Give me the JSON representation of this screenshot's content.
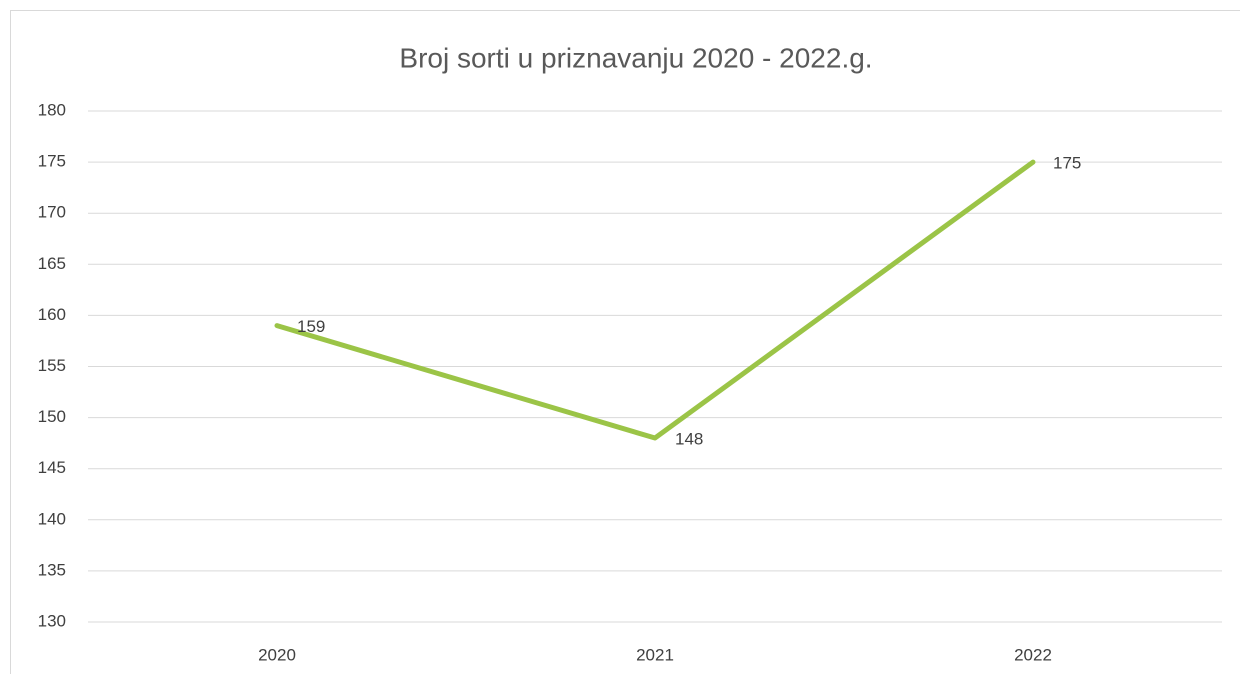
{
  "chart_data": {
    "type": "line",
    "title": "Broj sorti u priznavanju 2020 - 2022.g.",
    "categories": [
      "2020",
      "2021",
      "2022"
    ],
    "series": [
      {
        "color": "#9bc447",
        "values": [
          159,
          148,
          175
        ]
      }
    ],
    "ylim": [
      130,
      180
    ],
    "yticks": [
      130,
      135,
      140,
      145,
      150,
      155,
      160,
      165,
      170,
      175,
      180
    ],
    "grid": true
  }
}
